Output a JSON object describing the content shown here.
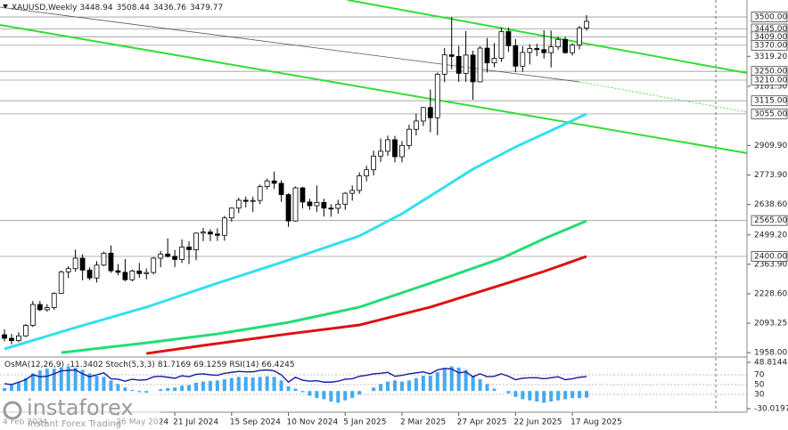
{
  "chart_data": {
    "type": "candlestick",
    "symbol": "XAUUSD,Weekly",
    "open": [
      2040,
      2024,
      2013,
      2035,
      2083,
      2179,
      2155,
      2165,
      2230,
      2329,
      2344,
      2392,
      2337,
      2301,
      2360,
      2415,
      2334,
      2327,
      2293,
      2333,
      2321,
      2326,
      2392,
      2411,
      2400,
      2386,
      2443,
      2431,
      2507,
      2512,
      2503,
      2497,
      2577,
      2622,
      2658,
      2653,
      2657,
      2721,
      2747,
      2736,
      2684,
      2563,
      2715,
      2650,
      2633,
      2648,
      2622,
      2621,
      2640,
      2690,
      2703,
      2770,
      2798,
      2861,
      2883,
      2936,
      2858,
      2910,
      2984,
      3022,
      3084,
      3037,
      3237,
      3326,
      3319,
      3241,
      3325,
      3202,
      3357,
      3289,
      3310,
      3433,
      3368,
      3274,
      3337,
      3355,
      3350,
      3336,
      3363,
      3397,
      3336,
      3371,
      3448.94
    ],
    "high": [
      2065,
      2044,
      2052,
      2090,
      2195,
      2195,
      2180,
      2235,
      2335,
      2355,
      2431,
      2410,
      2350,
      2378,
      2422,
      2450,
      2365,
      2388,
      2340,
      2370,
      2345,
      2397,
      2425,
      2483,
      2430,
      2478,
      2470,
      2510,
      2531,
      2525,
      2529,
      2586,
      2625,
      2670,
      2675,
      2674,
      2730,
      2758,
      2790,
      2750,
      2690,
      2721,
      2720,
      2665,
      2726,
      2665,
      2640,
      2660,
      2696,
      2726,
      2786,
      2817,
      2886,
      2942,
      2955,
      2954,
      2930,
      3005,
      3057,
      3087,
      3167,
      3245,
      3358,
      3500,
      3367,
      3435,
      3345,
      3365,
      3403,
      3380,
      3452,
      3451,
      3398,
      3365,
      3375,
      3377,
      3439,
      3438,
      3409,
      3409,
      3380,
      3459,
      3508.44
    ],
    "low": [
      2010,
      1996,
      2006,
      2030,
      2076,
      2148,
      2146,
      2155,
      2228,
      2300,
      2330,
      2290,
      2291,
      2280,
      2355,
      2325,
      2313,
      2286,
      2286,
      2301,
      2295,
      2318,
      2350,
      2395,
      2351,
      2370,
      2365,
      2383,
      2470,
      2470,
      2471,
      2472,
      2560,
      2599,
      2625,
      2604,
      2640,
      2708,
      2710,
      2650,
      2536,
      2560,
      2620,
      2614,
      2605,
      2583,
      2582,
      2596,
      2614,
      2656,
      2688,
      2745,
      2772,
      2834,
      2862,
      2832,
      2832,
      2892,
      2956,
      2999,
      2970,
      2957,
      3200,
      3260,
      3202,
      3202,
      3120,
      3200,
      3245,
      3269,
      3294,
      3340,
      3247,
      3248,
      3282,
      3320,
      3309,
      3268,
      3350,
      3331,
      3323,
      3351,
      3436.76
    ],
    "close": [
      2024,
      2013,
      2035,
      2083,
      2179,
      2155,
      2165,
      2230,
      2329,
      2344,
      2392,
      2337,
      2301,
      2360,
      2415,
      2334,
      2327,
      2293,
      2333,
      2321,
      2326,
      2392,
      2411,
      2400,
      2386,
      2443,
      2431,
      2507,
      2512,
      2503,
      2497,
      2577,
      2622,
      2658,
      2653,
      2657,
      2721,
      2747,
      2736,
      2684,
      2563,
      2715,
      2650,
      2633,
      2648,
      2622,
      2621,
      2640,
      2690,
      2703,
      2770,
      2798,
      2861,
      2883,
      2936,
      2858,
      2910,
      2984,
      3022,
      3084,
      3037,
      3237,
      3326,
      3319,
      3241,
      3325,
      3202,
      3357,
      3289,
      3310,
      3433,
      3368,
      3274,
      3337,
      3355,
      3350,
      3336,
      3363,
      3397,
      3336,
      3371,
      3448.94,
      3479.77
    ],
    "up_color": "#ffffff",
    "down_color": "#000000",
    "ylim": [
      1942,
      3578
    ],
    "yticks": [
      {
        "value": 3319.2,
        "label": "3319.20"
      },
      {
        "value": 3181.5,
        "label": "3181.50"
      },
      {
        "value": 2909.9,
        "label": "2909.90"
      },
      {
        "value": 2773.9,
        "label": "2773.90"
      },
      {
        "value": 2638.6,
        "label": "2638.60"
      },
      {
        "value": 2499.2,
        "label": "2499.20"
      },
      {
        "value": 2363.9,
        "label": "2363.90"
      },
      {
        "value": 2228.6,
        "label": "2228.60"
      },
      {
        "value": 2093.25,
        "label": "2093.25"
      },
      {
        "value": 1958,
        "label": "1958.00"
      }
    ],
    "levels": [
      {
        "value": 3500,
        "label": "3500.00"
      },
      {
        "value": 3445,
        "label": "3445.00"
      },
      {
        "value": 3409,
        "label": "3409.00"
      },
      {
        "value": 3370,
        "label": "3370.00"
      },
      {
        "value": 3250,
        "label": "3250.00"
      },
      {
        "value": 3210,
        "label": "3210.00"
      },
      {
        "value": 3115,
        "label": "3115.00"
      },
      {
        "value": 3055,
        "label": "3055.00"
      },
      {
        "value": 2565,
        "label": "2565.00"
      },
      {
        "value": 2400,
        "label": "2400.00"
      }
    ],
    "xticks": [
      {
        "value": 0,
        "label": "4 Feb 2024"
      },
      {
        "value": 16,
        "label": "26 May 2024"
      },
      {
        "value": 24,
        "label": "21 Jul 2024"
      },
      {
        "value": 32,
        "label": "15 Sep 2024"
      },
      {
        "value": 40,
        "label": "10 Nov 2024"
      },
      {
        "value": 48,
        "label": "5 Jan 2025"
      },
      {
        "value": 56,
        "label": "2 Mar 2025"
      },
      {
        "value": 64,
        "label": "27 Apr 2025"
      },
      {
        "value": 72,
        "label": "22 Jun 2025"
      },
      {
        "value": 80,
        "label": "17 Aug 2025"
      }
    ],
    "overlays": [
      {
        "color": "#33e0f0",
        "x": [
          0,
          10,
          20,
          30,
          40,
          50,
          56,
          60,
          66,
          72,
          78,
          82
        ],
        "values": [
          1975,
          2073,
          2167,
          2277,
          2383,
          2494,
          2596,
          2678,
          2801,
          2903,
          2993,
          3055
        ]
      },
      {
        "color": "#22dd77",
        "x": [
          8,
          20,
          30,
          40,
          50,
          60,
          70,
          76,
          82
        ],
        "values": [
          1958,
          2003,
          2044,
          2097,
          2167,
          2277,
          2391,
          2481,
          2563
        ]
      },
      {
        "color": "#e01010",
        "x": [
          20,
          28,
          40,
          50,
          60,
          70,
          76,
          82
        ],
        "values": [
          1954,
          1991,
          2044,
          2085,
          2167,
          2269,
          2331,
          2400
        ]
      }
    ],
    "indicator": {
      "osma_label": "OsMA(12,26,9)",
      "osma": [
        5,
        10,
        15,
        22,
        30,
        35,
        38,
        38,
        40,
        42,
        40,
        36,
        30,
        26,
        24,
        18,
        12,
        6,
        2,
        -2,
        -3,
        0,
        3,
        5,
        6,
        9,
        10,
        14,
        16,
        17,
        18,
        20,
        22,
        24,
        24,
        23,
        24,
        25,
        24,
        18,
        8,
        4,
        -2,
        -8,
        -12,
        -14,
        -18,
        -20,
        -16,
        -12,
        -6,
        0,
        6,
        12,
        16,
        18,
        16,
        18,
        22,
        26,
        26,
        32,
        38,
        42,
        40,
        36,
        26,
        20,
        12,
        4,
        0,
        -4,
        -10,
        -14,
        -16,
        -18,
        -20,
        -18,
        -16,
        -14,
        -12,
        -12,
        -11.3402
      ],
      "osma_color": "#46aaf0",
      "osma_ylim": [
        -30.0197,
        48.8144
      ],
      "osma_ticks": [
        48.8144,
        -30.0197
      ],
      "stoch_label": "Stoch(5,3,3)",
      "stoch_main": 81.7169,
      "stoch_signal": 69.1259,
      "rsi_label": "RSI(14)",
      "rsi": [
        52,
        50,
        55,
        60,
        70,
        66,
        67,
        72,
        78,
        79,
        80,
        72,
        66,
        70,
        74,
        62,
        61,
        57,
        61,
        59,
        60,
        66,
        67,
        65,
        63,
        68,
        66,
        71,
        72,
        70,
        69,
        73,
        75,
        77,
        76,
        76,
        79,
        80,
        78,
        70,
        55,
        65,
        59,
        57,
        58,
        55,
        55,
        57,
        61,
        62,
        67,
        69,
        72,
        73,
        75,
        67,
        69,
        72,
        74,
        76,
        72,
        80,
        83,
        82,
        74,
        76,
        66,
        72,
        66,
        67,
        72,
        67,
        60,
        63,
        64,
        64,
        62,
        64,
        66,
        60,
        62,
        65,
        66.4245
      ],
      "rsi_color": "#1a1aa0",
      "rsi_ylim": [
        0,
        100
      ],
      "rsi_levels": [
        70,
        50,
        30
      ]
    },
    "watermark": {
      "brand": "instaforex",
      "tagline": "Instant Forex Trading"
    }
  }
}
